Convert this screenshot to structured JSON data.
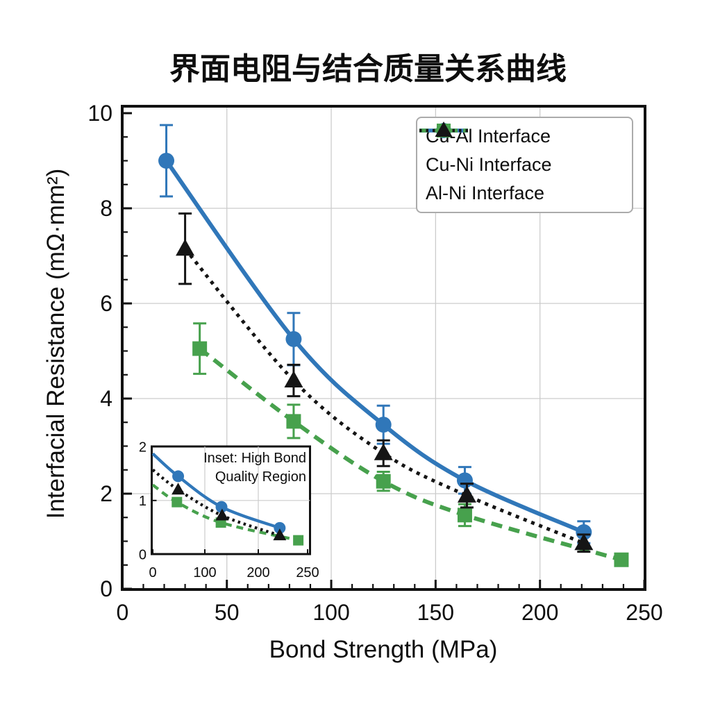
{
  "title": "界面电阻与结合质量关系曲线",
  "chart_data": {
    "type": "line",
    "title": "界面电阻与结合质量关系曲线",
    "xlabel": "Bond Strength (MPa)",
    "ylabel": "Interfacial Resistance (mΩ·mm²)",
    "xlim": [
      0,
      250
    ],
    "ylim": [
      0,
      10
    ],
    "x_ticks": [
      0,
      50,
      100,
      150,
      200,
      250
    ],
    "y_ticks": [
      0,
      2,
      4,
      6,
      8,
      10
    ],
    "grid": true,
    "legend_position": "upper right",
    "series": [
      {
        "name": "Cu-Al Interface",
        "color": "#3077b9",
        "marker": "circle",
        "line": "solid",
        "x": [
          21,
          82,
          125,
          164,
          221
        ],
        "y": [
          9.0,
          5.25,
          3.45,
          2.28,
          1.19
        ],
        "yerr": [
          0.75,
          0.55,
          0.4,
          0.28,
          0.23
        ]
      },
      {
        "name": "Cu-Ni Interface",
        "color": "#47a14d",
        "marker": "square",
        "line": "dashed",
        "x": [
          37,
          82,
          125,
          164,
          239
        ],
        "y": [
          5.05,
          3.52,
          2.26,
          1.55,
          0.61
        ],
        "yerr": [
          0.53,
          0.35,
          0.2,
          0.23,
          0.1
        ]
      },
      {
        "name": "Al-Ni Interface",
        "color": "#151515",
        "marker": "triangle",
        "line": "dotted",
        "x": [
          30,
          82,
          125,
          165,
          221
        ],
        "y": [
          7.15,
          4.38,
          2.85,
          1.96,
          0.96
        ],
        "yerr": [
          0.74,
          0.33,
          0.27,
          0.25,
          0.18
        ]
      }
    ],
    "inset": {
      "title": "Inset: High Bond Quality Region",
      "title_line1": "Inset: High Bond",
      "title_line2": "Quality Region",
      "xlim": [
        0,
        250
      ],
      "ylim": [
        0,
        2
      ],
      "x_ticks": [
        0,
        100,
        200,
        250
      ],
      "y_ticks": [
        0,
        1,
        2
      ],
      "series": [
        {
          "name": "Cu-Al Interface",
          "x": [
            0,
            41,
            111,
            205
          ],
          "y": [
            1.87,
            1.45,
            0.88,
            0.49
          ],
          "marker_from": 1
        },
        {
          "name": "Cu-Ni Interface",
          "x": [
            0,
            39,
            110,
            235
          ],
          "y": [
            1.29,
            0.97,
            0.59,
            0.26
          ],
          "marker_from": 1
        },
        {
          "name": "Al-Ni Interface",
          "x": [
            0,
            41,
            112,
            205
          ],
          "y": [
            1.57,
            1.2,
            0.72,
            0.35
          ],
          "marker_from": 1
        }
      ]
    }
  },
  "colors": {
    "axis": "#111111",
    "grid": "#cccccc",
    "background": "#ffffff"
  }
}
